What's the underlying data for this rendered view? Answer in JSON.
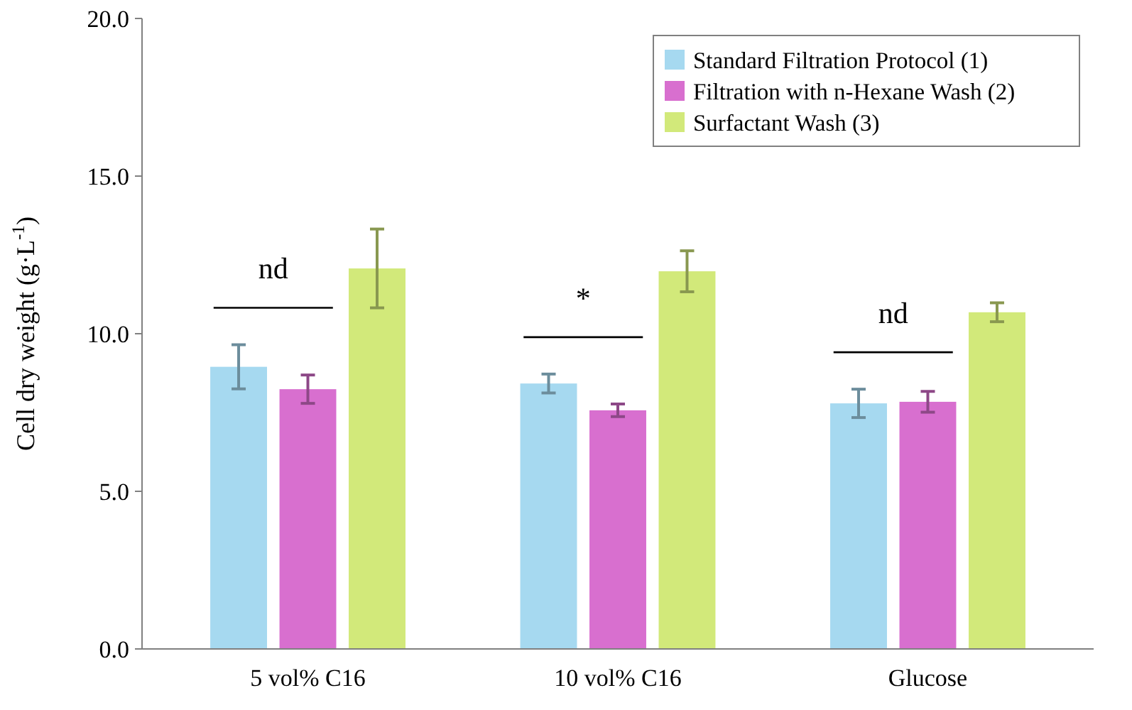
{
  "chart_data": {
    "type": "bar",
    "ylabel": "Cell dry weight (g·L$^{-1}$)",
    "categories": [
      "5 vol% C16",
      "10 vol% C16",
      "Glucose"
    ],
    "series": [
      {
        "name": "Standard Filtration Protocol (1)",
        "color": "#a6d9f0",
        "values": [
          8.95,
          8.42,
          7.79
        ],
        "errors": [
          0.7,
          0.3,
          0.45
        ]
      },
      {
        "name": "Filtration with n-Hexane Wash (2)",
        "color": "#d86fcf",
        "values": [
          8.24,
          7.57,
          7.84
        ],
        "errors": [
          0.45,
          0.2,
          0.33
        ]
      },
      {
        "name": "Surfactant Wash (3)",
        "color": "#d2e97a",
        "values": [
          12.07,
          11.98,
          10.68
        ],
        "errors": [
          1.25,
          0.65,
          0.3
        ]
      }
    ],
    "ylim": [
      0,
      20
    ],
    "yticks": [
      {
        "value": 0,
        "label": "0.0"
      },
      {
        "value": 5,
        "label": "5.0"
      },
      {
        "value": 10,
        "label": "10.0"
      },
      {
        "value": 15,
        "label": "15.0"
      },
      {
        "value": 20,
        "label": "20.0"
      }
    ],
    "legend": "top right",
    "annotations": [
      "nd",
      "*",
      "nd"
    ]
  }
}
